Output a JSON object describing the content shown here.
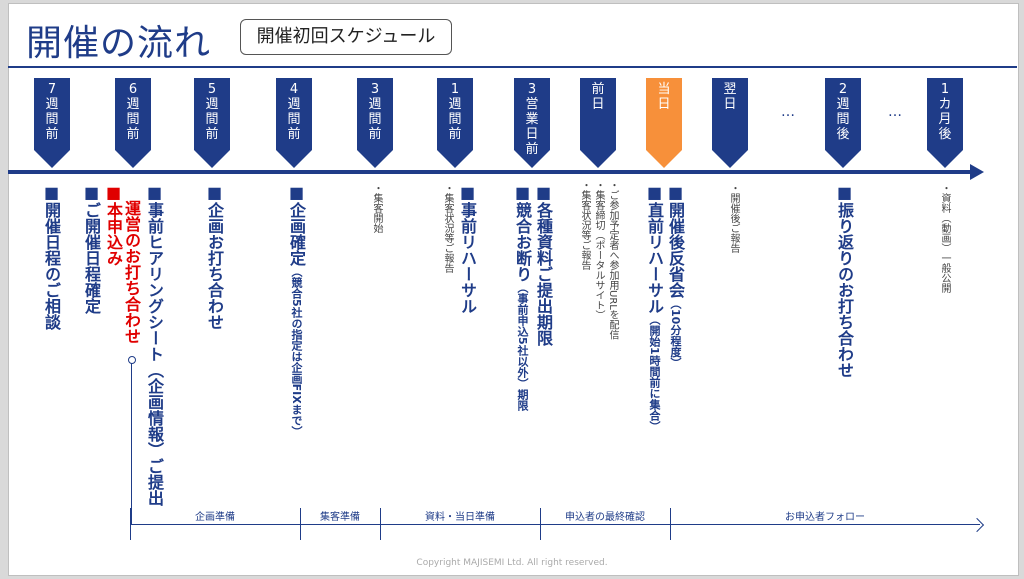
{
  "title": "開催の流れ",
  "subtitle": "開催初回スケジュール",
  "markers": [
    {
      "label": "7週間前",
      "color": "#1f3c88"
    },
    {
      "label": "6週間前",
      "color": "#1f3c88"
    },
    {
      "label": "5週間前",
      "color": "#1f3c88"
    },
    {
      "label": "4週間前",
      "color": "#1f3c88"
    },
    {
      "label": "3週間前",
      "color": "#1f3c88"
    },
    {
      "label": "1週間前",
      "color": "#1f3c88"
    },
    {
      "label": "3営業日前",
      "color": "#1f3c88"
    },
    {
      "label": "前日",
      "color": "#1f3c88"
    },
    {
      "label": "当日",
      "color": "#f7903a"
    },
    {
      "label": "翌日",
      "color": "#1f3c88"
    },
    {
      "label": "2週間後",
      "color": "#1f3c88"
    },
    {
      "label": "1カ月後",
      "color": "#1f3c88"
    }
  ],
  "ellipsis": "…",
  "tasks": {
    "t1": "■開催日程のご相談",
    "t2": "■ご開催日程確定",
    "t3": "■本申込み",
    "t4": "運営のお打ち合わせ",
    "t5": "■事前ヒアリングシート（企画情報）ご提出",
    "t6": "■企画お打ち合わせ",
    "t7a": "■企画確定",
    "t7b": "（競合5社の指定は企画FIXまで）",
    "t8": "・集客開始",
    "t9": "・集客状況等ご報告",
    "t10": "■事前リハーサル",
    "t11a": "■競合お断り",
    "t11b": "（事前申込5社以外）期限",
    "t12": "■各種資料ご提出期限",
    "t13a": "・ご参加予定者へ参加用URLを配信",
    "t13b": "・集客締切（ポータルサイト）",
    "t13c": "・集客状況等ご報告",
    "t14a": "■直前リハーサル",
    "t14b": "（開始1時間前に集合）",
    "t15a": "■開催後反省会",
    "t15b": "（10分程度）",
    "t16": "・開催後ご報告",
    "t17": "■振り返りのお打ち合わせ",
    "t18": "・資料（動画）一般公開"
  },
  "phases": [
    "企画準備",
    "集客準備",
    "資料・当日準備",
    "申込者の最終確認",
    "お申込者フォロー"
  ],
  "footer": "Copyright MAJISEMI Ltd. All right reserved."
}
